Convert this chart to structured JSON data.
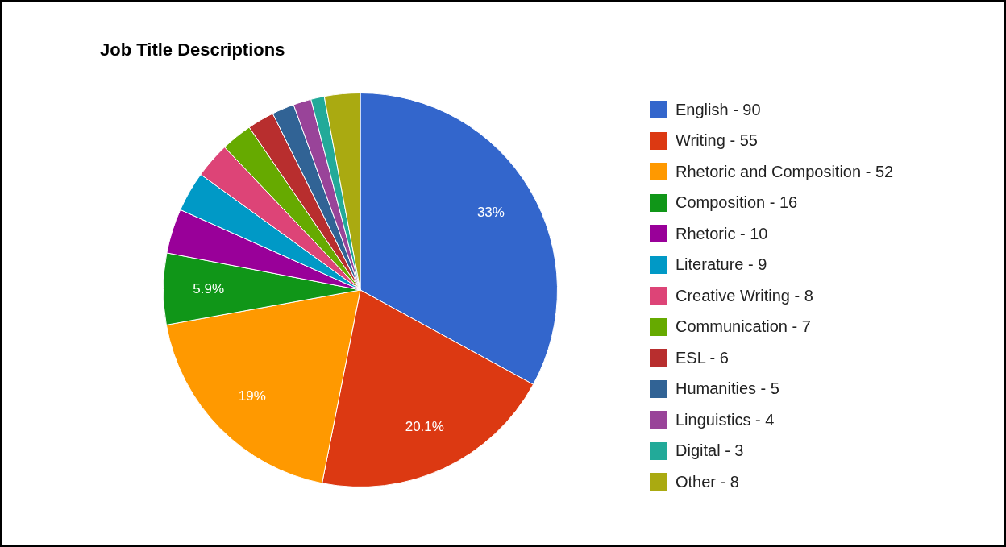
{
  "chart_data": {
    "type": "pie",
    "title": "Job Title Descriptions",
    "categories": [
      "English - 90",
      "Writing - 55",
      "Rhetoric and Composition - 52",
      "Composition - 16",
      "Rhetoric - 10",
      "Literature - 9",
      "Creative Writing - 8",
      "Communication - 7",
      "ESL - 6",
      "Humanities - 5",
      "Linguistics - 4",
      "Digital - 3",
      "Other - 8"
    ],
    "values": [
      32.96,
      20.15,
      19.05,
      5.86,
      3.66,
      3.3,
      2.93,
      2.56,
      2.2,
      1.83,
      1.47,
      1.1,
      2.93
    ],
    "colors": [
      "#3366cc",
      "#dc3912",
      "#ff9900",
      "#109618",
      "#990099",
      "#0099c6",
      "#dd4477",
      "#66aa00",
      "#b82e2e",
      "#316395",
      "#994499",
      "#22aa99",
      "#aaaa11"
    ],
    "value_labels": [
      "33%",
      "20.1%",
      "19%",
      "5.9%",
      null,
      null,
      null,
      null,
      null,
      null,
      null,
      null,
      null
    ],
    "legend": "right"
  }
}
